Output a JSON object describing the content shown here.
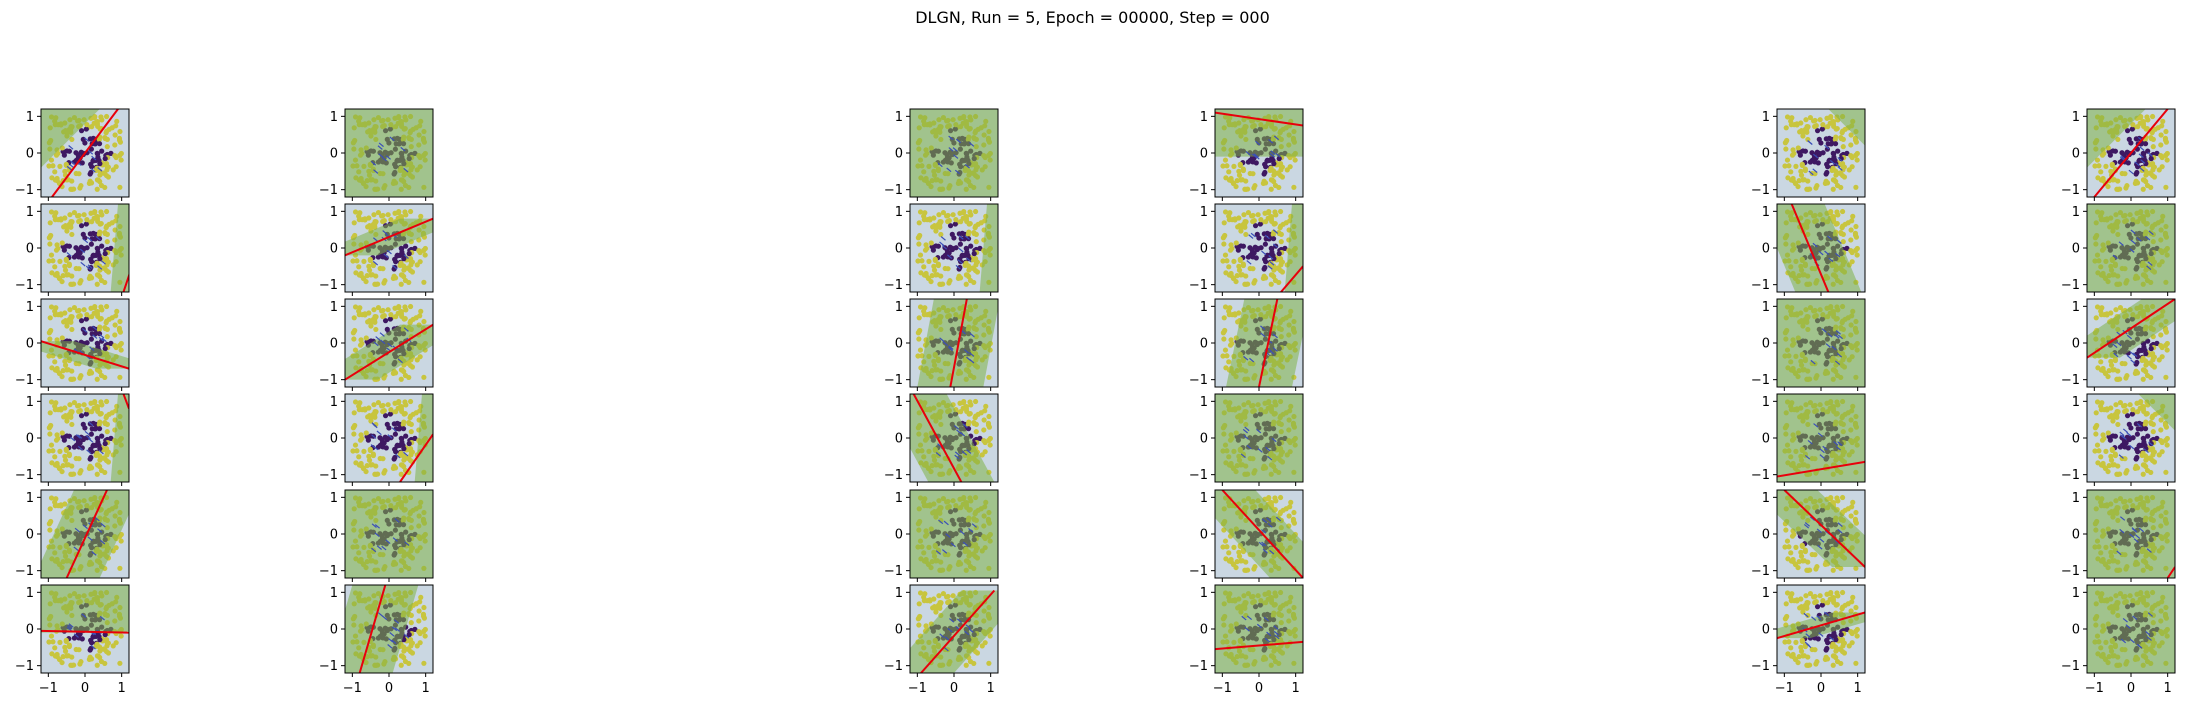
{
  "title": "DLGN, Run = 5, Epoch = 00000, Step = 000",
  "colors": {
    "class_inner": "#440154",
    "class_outer": "#fde725",
    "region_a": "#2c5f8a",
    "region_b": "#9acd32",
    "boundary": "#e8000b",
    "arrow": "#3b4fb8"
  },
  "chart_data": {
    "type": "scatter",
    "grid": "6x6 subplots",
    "xlim": [
      -1.2,
      1.2
    ],
    "ylim": [
      -1.2,
      1.2
    ],
    "x_ticks": [
      "−1",
      "0",
      "1"
    ],
    "y_ticks": [
      "1",
      "0",
      "−1"
    ],
    "grid_on": false,
    "dataset": "diamond: |x|+|y| < 0.72 inner class (dark), rest outer class (yellow)",
    "panels": [
      [
        {
          "boundary": [
            [
              -0.9,
              -1.2
            ],
            [
              0.9,
              1.2
            ]
          ],
          "shade": "diag"
        },
        {
          "boundary": null,
          "shade": "full"
        },
        {
          "boundary": null,
          "shade": "full"
        },
        {
          "boundary": [
            [
              -1.2,
              1.1
            ],
            [
              1.2,
              0.75
            ]
          ],
          "shade": "top"
        },
        {
          "boundary": null,
          "shade": "corner"
        },
        {
          "boundary": [
            [
              -1.0,
              -1.2
            ],
            [
              1.0,
              1.2
            ]
          ],
          "shade": "diag"
        }
      ],
      [
        {
          "boundary": [
            [
              1.05,
              -1.2
            ],
            [
              1.25,
              -0.6
            ]
          ],
          "shade": "edge"
        },
        {
          "boundary": [
            [
              -1.2,
              -0.2
            ],
            [
              1.2,
              0.8
            ]
          ],
          "shade": "band"
        },
        {
          "boundary": null,
          "shade": "edge"
        },
        {
          "boundary": [
            [
              0.6,
              -1.2
            ],
            [
              1.2,
              -0.5
            ]
          ],
          "shade": "edge"
        },
        {
          "boundary": [
            [
              -0.8,
              1.2
            ],
            [
              0.2,
              -1.2
            ]
          ],
          "shade": "band"
        },
        {
          "boundary": null,
          "shade": "full"
        }
      ],
      [
        {
          "boundary": [
            [
              -1.2,
              0.05
            ],
            [
              1.2,
              -0.7
            ]
          ],
          "shade": "band"
        },
        {
          "boundary": [
            [
              -1.2,
              -1.0
            ],
            [
              1.2,
              0.5
            ]
          ],
          "shade": "band"
        },
        {
          "boundary": [
            [
              -0.1,
              -1.2
            ],
            [
              0.35,
              1.2
            ]
          ],
          "shade": "band"
        },
        {
          "boundary": [
            [
              0.0,
              -1.2
            ],
            [
              0.5,
              1.2
            ]
          ],
          "shade": "band"
        },
        {
          "boundary": null,
          "shade": "full"
        },
        {
          "boundary": [
            [
              -1.2,
              -0.4
            ],
            [
              1.2,
              1.2
            ]
          ],
          "shade": "band"
        }
      ],
      [
        {
          "boundary": [
            [
              1.05,
              1.2
            ],
            [
              1.2,
              0.8
            ]
          ],
          "shade": "edge"
        },
        {
          "boundary": [
            [
              0.3,
              -1.2
            ],
            [
              1.2,
              0.1
            ]
          ],
          "shade": "edge"
        },
        {
          "boundary": [
            [
              -1.1,
              1.2
            ],
            [
              0.2,
              -1.2
            ]
          ],
          "shade": "band"
        },
        {
          "boundary": null,
          "shade": "full"
        },
        {
          "boundary": [
            [
              -1.2,
              -1.05
            ],
            [
              1.2,
              -0.65
            ]
          ],
          "shade": "full"
        },
        {
          "boundary": null,
          "shade": "corner"
        }
      ],
      [
        {
          "boundary": [
            [
              -0.5,
              -1.2
            ],
            [
              0.6,
              1.2
            ]
          ],
          "shade": "band"
        },
        {
          "boundary": null,
          "shade": "full"
        },
        {
          "boundary": null,
          "shade": "full"
        },
        {
          "boundary": [
            [
              -1.0,
              1.2
            ],
            [
              1.2,
              -1.2
            ]
          ],
          "shade": "band"
        },
        {
          "boundary": [
            [
              -1.0,
              1.2
            ],
            [
              1.2,
              -0.9
            ]
          ],
          "shade": "band"
        },
        {
          "boundary": [
            [
              1.0,
              -1.2
            ],
            [
              1.2,
              -0.9
            ]
          ],
          "shade": "full"
        }
      ],
      [
        {
          "boundary": [
            [
              -1.2,
              -0.05
            ],
            [
              1.2,
              -0.1
            ]
          ],
          "shade": "top"
        },
        {
          "boundary": [
            [
              -0.8,
              -1.2
            ],
            [
              -0.1,
              1.2
            ]
          ],
          "shade": "band"
        },
        {
          "boundary": [
            [
              -0.9,
              -1.2
            ],
            [
              1.1,
              1.05
            ]
          ],
          "shade": "band"
        },
        {
          "boundary": [
            [
              -1.2,
              -0.55
            ],
            [
              1.2,
              -0.35
            ]
          ],
          "shade": "full"
        },
        {
          "boundary": [
            [
              -1.2,
              -0.25
            ],
            [
              1.2,
              0.45
            ]
          ],
          "shade": "band"
        },
        {
          "boundary": null,
          "shade": "full"
        }
      ]
    ]
  }
}
